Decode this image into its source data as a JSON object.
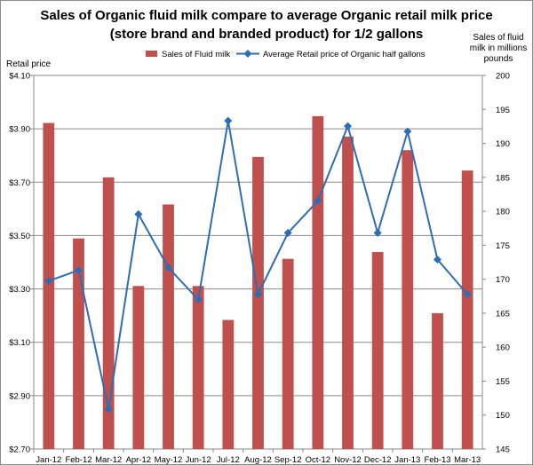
{
  "chart_data": {
    "type": "bar+line",
    "title_line1": "Sales of Organic fluid milk compare to average Organic retail milk price",
    "title_line2": "(store brand and branded product) for 1/2 gallons",
    "left_axis_label": "Retail price",
    "right_axis_label": [
      "Sales of fluid",
      "milk in millions",
      "pounds"
    ],
    "categories": [
      "Jan-12",
      "Feb-12",
      "Mar-12",
      "Apr-12",
      "May-12",
      "Jun-12",
      "Jul-12",
      "Aug-12",
      "Sep-12",
      "Oct-12",
      "Nov-12",
      "Dec-12",
      "Jan-13",
      "Feb-13",
      "Mar-13"
    ],
    "left_axis": {
      "min": 2.7,
      "max": 4.1,
      "ticks": [
        "$2.70",
        "$2.90",
        "$3.10",
        "$3.30",
        "$3.50",
        "$3.70",
        "$3.90",
        "$4.10"
      ]
    },
    "right_axis": {
      "min": 145,
      "max": 200,
      "ticks": [
        "145",
        "150",
        "155",
        "160",
        "165",
        "170",
        "175",
        "180",
        "185",
        "190",
        "195",
        "200"
      ]
    },
    "series": [
      {
        "name": "Sales of Fluid milk",
        "type": "bar",
        "axis": "right",
        "color": "#c0504d",
        "values": [
          193,
          176,
          185,
          169,
          181,
          169,
          164,
          188,
          173,
          194,
          191,
          174,
          189,
          165,
          186
        ]
      },
      {
        "name": "Average Retail price of Organic half gallons",
        "type": "line",
        "axis": "left",
        "color": "#2e6db4",
        "values": [
          3.33,
          3.37,
          2.85,
          3.58,
          3.38,
          3.26,
          3.93,
          3.28,
          3.51,
          3.63,
          3.91,
          3.51,
          3.89,
          3.41,
          3.28
        ]
      }
    ],
    "grid": "horizontal",
    "legend_position": "top"
  }
}
